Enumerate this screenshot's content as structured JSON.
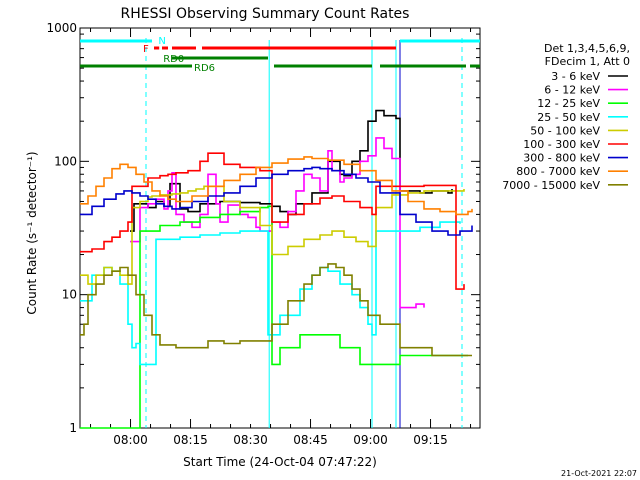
{
  "chart_data": {
    "type": "line",
    "title": "RHESSI Observing Summary Count Rates",
    "xlabel": "Start Time (24-Oct-04 07:47:22)",
    "ylabel": "Count Rate (s⁻¹ detector⁻¹)",
    "yscale": "log",
    "ylim": [
      1,
      1000
    ],
    "xlim_minutes_from_start": [
      0,
      100
    ],
    "x_ticks": [
      "08:00",
      "08:15",
      "08:30",
      "08:45",
      "09:00",
      "09:15"
    ],
    "y_ticks": [
      "1",
      "10",
      "100",
      "1000"
    ],
    "grid": false,
    "legend_position": "right",
    "legend_title": [
      "Det 1,3,4,5,6,9,",
      "FDecim 1, Att 0"
    ],
    "footer_timestamp": "21-Oct-2021 22:07",
    "vlines_dashed_minutes": [
      16.5,
      95.5
    ],
    "vlines_solid_minutes": [
      47.3,
      73.0,
      79.0,
      80.0
    ],
    "flag_bars": [
      {
        "label": "N",
        "color": "#00ffff",
        "segments": [
          [
            0,
            18
          ],
          [
            80,
            100
          ]
        ]
      },
      {
        "label": "F",
        "color": "#ff0000",
        "segments": [
          [
            18.5,
            19.8
          ],
          [
            20.5,
            22
          ],
          [
            23,
            29
          ],
          [
            30.5,
            79
          ]
        ]
      },
      {
        "label": "RD0",
        "color": "#008000",
        "segments": [
          [
            23,
            47
          ]
        ]
      },
      {
        "label": "RD6",
        "color": "#008000",
        "segments": [
          [
            0,
            28
          ],
          [
            48.5,
            73
          ],
          [
            75,
            96.5
          ],
          [
            97.5,
            100
          ]
        ]
      }
    ],
    "series": [
      {
        "name": "3 - 6 keV",
        "color": "#000000",
        "points": [
          [
            12.5,
            30
          ],
          [
            13.5,
            48
          ],
          [
            17,
            45
          ],
          [
            19,
            50
          ],
          [
            21,
            46
          ],
          [
            22.5,
            68
          ],
          [
            25,
            44
          ],
          [
            27,
            42
          ],
          [
            30,
            48
          ],
          [
            35,
            50
          ],
          [
            40,
            49
          ],
          [
            45,
            48
          ],
          [
            48,
            46
          ],
          [
            50,
            42
          ],
          [
            52,
            40
          ],
          [
            54,
            48
          ],
          [
            58,
            58
          ],
          [
            62,
            100
          ],
          [
            65,
            80
          ],
          [
            66,
            78
          ],
          [
            68,
            100
          ],
          [
            70,
            120
          ],
          [
            72,
            200
          ],
          [
            74,
            240
          ],
          [
            76,
            220
          ],
          [
            79,
            210
          ],
          [
            80,
            60
          ],
          [
            85,
            58
          ],
          [
            88,
            60
          ],
          [
            92,
            58
          ],
          [
            93,
            62
          ]
        ]
      },
      {
        "name": "6 - 12 keV",
        "color": "#ff00ff",
        "points": [
          [
            12.5,
            25
          ],
          [
            15,
            45
          ],
          [
            17,
            48
          ],
          [
            19,
            52
          ],
          [
            21,
            44
          ],
          [
            22,
            60
          ],
          [
            23,
            82
          ],
          [
            24,
            40
          ],
          [
            26,
            35
          ],
          [
            28,
            32
          ],
          [
            30,
            40
          ],
          [
            32,
            80
          ],
          [
            34,
            48
          ],
          [
            35,
            35
          ],
          [
            37,
            47
          ],
          [
            40,
            40
          ],
          [
            42,
            38
          ],
          [
            44,
            32
          ],
          [
            45,
            30
          ],
          [
            48,
            35
          ],
          [
            50,
            32
          ],
          [
            52,
            42
          ],
          [
            54,
            60
          ],
          [
            56,
            80
          ],
          [
            58,
            75
          ],
          [
            60,
            60
          ],
          [
            62,
            120
          ],
          [
            63,
            85
          ],
          [
            65,
            70
          ],
          [
            66,
            75
          ],
          [
            68,
            80
          ],
          [
            70,
            100
          ],
          [
            72,
            110
          ],
          [
            74,
            150
          ],
          [
            76,
            125
          ],
          [
            78,
            105
          ],
          [
            80,
            8
          ],
          [
            82,
            8
          ],
          [
            84,
            8.5
          ],
          [
            86,
            8
          ]
        ]
      },
      {
        "name": "12 - 25 keV",
        "color": "#00ff00",
        "points": [
          [
            0,
            1
          ],
          [
            14,
            1
          ],
          [
            15,
            30
          ],
          [
            20,
            33
          ],
          [
            25,
            35
          ],
          [
            30,
            38
          ],
          [
            35,
            40
          ],
          [
            40,
            42
          ],
          [
            45,
            45
          ],
          [
            47,
            46
          ],
          [
            48,
            3
          ],
          [
            50,
            4
          ],
          [
            55,
            5
          ],
          [
            60,
            5
          ],
          [
            65,
            4
          ],
          [
            70,
            3
          ],
          [
            75,
            3
          ],
          [
            78,
            3
          ],
          [
            80,
            3.5
          ],
          [
            90,
            3.5
          ],
          [
            97,
            3.5
          ]
        ]
      },
      {
        "name": "25 - 50 keV",
        "color": "#00ffff",
        "points": [
          [
            0,
            9
          ],
          [
            3,
            14
          ],
          [
            6,
            16
          ],
          [
            8,
            15
          ],
          [
            10,
            12
          ],
          [
            12,
            6
          ],
          [
            13,
            4
          ],
          [
            14,
            4.3
          ],
          [
            15,
            3
          ],
          [
            18,
            3
          ],
          [
            19,
            26
          ],
          [
            25,
            27
          ],
          [
            30,
            28
          ],
          [
            35,
            29
          ],
          [
            40,
            30
          ],
          [
            45,
            30
          ],
          [
            46,
            30
          ],
          [
            47,
            5
          ],
          [
            50,
            7
          ],
          [
            55,
            11
          ],
          [
            58,
            14
          ],
          [
            60,
            16
          ],
          [
            62,
            15
          ],
          [
            65,
            12
          ],
          [
            68,
            10
          ],
          [
            70,
            8
          ],
          [
            72,
            6
          ],
          [
            73,
            5
          ],
          [
            74,
            30
          ],
          [
            76,
            30
          ],
          [
            80,
            30
          ],
          [
            85,
            32
          ],
          [
            90,
            35
          ],
          [
            95,
            34
          ]
        ]
      },
      {
        "name": "50 - 100 keV",
        "color": "#cccc00",
        "points": [
          [
            0,
            14
          ],
          [
            2,
            12
          ],
          [
            4,
            14
          ],
          [
            6,
            16
          ],
          [
            8,
            15
          ],
          [
            10,
            14
          ],
          [
            12,
            12
          ],
          [
            13,
            45
          ],
          [
            15,
            50
          ],
          [
            17,
            54
          ],
          [
            18,
            55
          ],
          [
            19,
            55
          ],
          [
            20,
            56
          ],
          [
            23,
            57
          ],
          [
            25,
            58
          ],
          [
            27,
            60
          ],
          [
            29,
            62
          ],
          [
            31,
            65
          ],
          [
            33,
            65
          ],
          [
            36,
            50
          ],
          [
            40,
            45
          ],
          [
            45,
            33
          ],
          [
            48,
            20
          ],
          [
            52,
            23
          ],
          [
            56,
            26
          ],
          [
            60,
            28
          ],
          [
            63,
            30
          ],
          [
            66,
            27
          ],
          [
            69,
            25
          ],
          [
            72,
            23
          ],
          [
            74,
            45
          ],
          [
            78,
            56
          ],
          [
            82,
            58
          ],
          [
            86,
            60
          ],
          [
            90,
            60
          ],
          [
            96,
            62
          ]
        ]
      },
      {
        "name": "100 - 300 keV",
        "color": "#ff0000",
        "points": [
          [
            0,
            21
          ],
          [
            3,
            22
          ],
          [
            6,
            25
          ],
          [
            8,
            27
          ],
          [
            10,
            30
          ],
          [
            12,
            35
          ],
          [
            13,
            65
          ],
          [
            17,
            75
          ],
          [
            20,
            78
          ],
          [
            22,
            80
          ],
          [
            24,
            82
          ],
          [
            27,
            85
          ],
          [
            30,
            100
          ],
          [
            32,
            115
          ],
          [
            34,
            115
          ],
          [
            36,
            95
          ],
          [
            40,
            90
          ],
          [
            45,
            85
          ],
          [
            47,
            85
          ],
          [
            48,
            35
          ],
          [
            52,
            40
          ],
          [
            56,
            48
          ],
          [
            60,
            53
          ],
          [
            63,
            55
          ],
          [
            66,
            50
          ],
          [
            70,
            45
          ],
          [
            73,
            40
          ],
          [
            74,
            65
          ],
          [
            78,
            65
          ],
          [
            82,
            65
          ],
          [
            86,
            66
          ],
          [
            90,
            66
          ],
          [
            93,
            66
          ],
          [
            94,
            11
          ],
          [
            96,
            12
          ]
        ]
      },
      {
        "name": "300 - 800 keV",
        "color": "#0000cc",
        "points": [
          [
            0,
            40
          ],
          [
            3,
            46
          ],
          [
            6,
            52
          ],
          [
            9,
            57
          ],
          [
            11,
            60
          ],
          [
            13,
            58
          ],
          [
            15,
            55
          ],
          [
            17,
            52
          ],
          [
            19,
            48
          ],
          [
            21,
            46
          ],
          [
            23,
            44
          ],
          [
            25,
            45
          ],
          [
            28,
            50
          ],
          [
            32,
            55
          ],
          [
            36,
            58
          ],
          [
            40,
            65
          ],
          [
            44,
            75
          ],
          [
            48,
            80
          ],
          [
            52,
            85
          ],
          [
            56,
            88
          ],
          [
            58,
            90
          ],
          [
            60,
            88
          ],
          [
            63,
            85
          ],
          [
            66,
            80
          ],
          [
            69,
            75
          ],
          [
            72,
            70
          ],
          [
            75,
            58
          ],
          [
            80,
            40
          ],
          [
            84,
            35
          ],
          [
            88,
            30
          ],
          [
            92,
            28
          ],
          [
            95,
            30
          ],
          [
            98,
            33
          ]
        ]
      },
      {
        "name": "800 - 7000 keV",
        "color": "#ff8000",
        "points": [
          [
            0,
            48
          ],
          [
            2,
            55
          ],
          [
            4,
            65
          ],
          [
            6,
            75
          ],
          [
            8,
            88
          ],
          [
            10,
            95
          ],
          [
            12,
            90
          ],
          [
            14,
            80
          ],
          [
            16,
            70
          ],
          [
            18,
            60
          ],
          [
            20,
            55
          ],
          [
            22,
            52
          ],
          [
            24,
            50
          ],
          [
            26,
            50
          ],
          [
            28,
            55
          ],
          [
            32,
            65
          ],
          [
            36,
            72
          ],
          [
            40,
            80
          ],
          [
            44,
            90
          ],
          [
            48,
            97
          ],
          [
            52,
            104
          ],
          [
            56,
            108
          ],
          [
            58,
            105
          ],
          [
            62,
            102
          ],
          [
            66,
            95
          ],
          [
            70,
            85
          ],
          [
            74,
            72
          ],
          [
            78,
            60
          ],
          [
            82,
            50
          ],
          [
            86,
            44
          ],
          [
            90,
            42
          ],
          [
            94,
            40
          ],
          [
            97,
            42
          ],
          [
            98,
            44
          ]
        ]
      },
      {
        "name": "7000 - 15000 keV",
        "color": "#808000",
        "points": [
          [
            0,
            5
          ],
          [
            1,
            6
          ],
          [
            2,
            10
          ],
          [
            4,
            12
          ],
          [
            6,
            14
          ],
          [
            8,
            15
          ],
          [
            10,
            16
          ],
          [
            12,
            14
          ],
          [
            14,
            10
          ],
          [
            16,
            7
          ],
          [
            18,
            5
          ],
          [
            20,
            4.2
          ],
          [
            24,
            4
          ],
          [
            28,
            4
          ],
          [
            32,
            4.5
          ],
          [
            36,
            4.3
          ],
          [
            40,
            4.5
          ],
          [
            44,
            4.5
          ],
          [
            48,
            6
          ],
          [
            52,
            9
          ],
          [
            56,
            12
          ],
          [
            58,
            14
          ],
          [
            60,
            16
          ],
          [
            62,
            17
          ],
          [
            64,
            16
          ],
          [
            66,
            14
          ],
          [
            68,
            11
          ],
          [
            70,
            9
          ],
          [
            72,
            7
          ],
          [
            75,
            6
          ],
          [
            80,
            4
          ],
          [
            84,
            4
          ],
          [
            88,
            3.5
          ],
          [
            92,
            3.5
          ],
          [
            96,
            3.5
          ],
          [
            98,
            3.5
          ]
        ]
      }
    ]
  }
}
